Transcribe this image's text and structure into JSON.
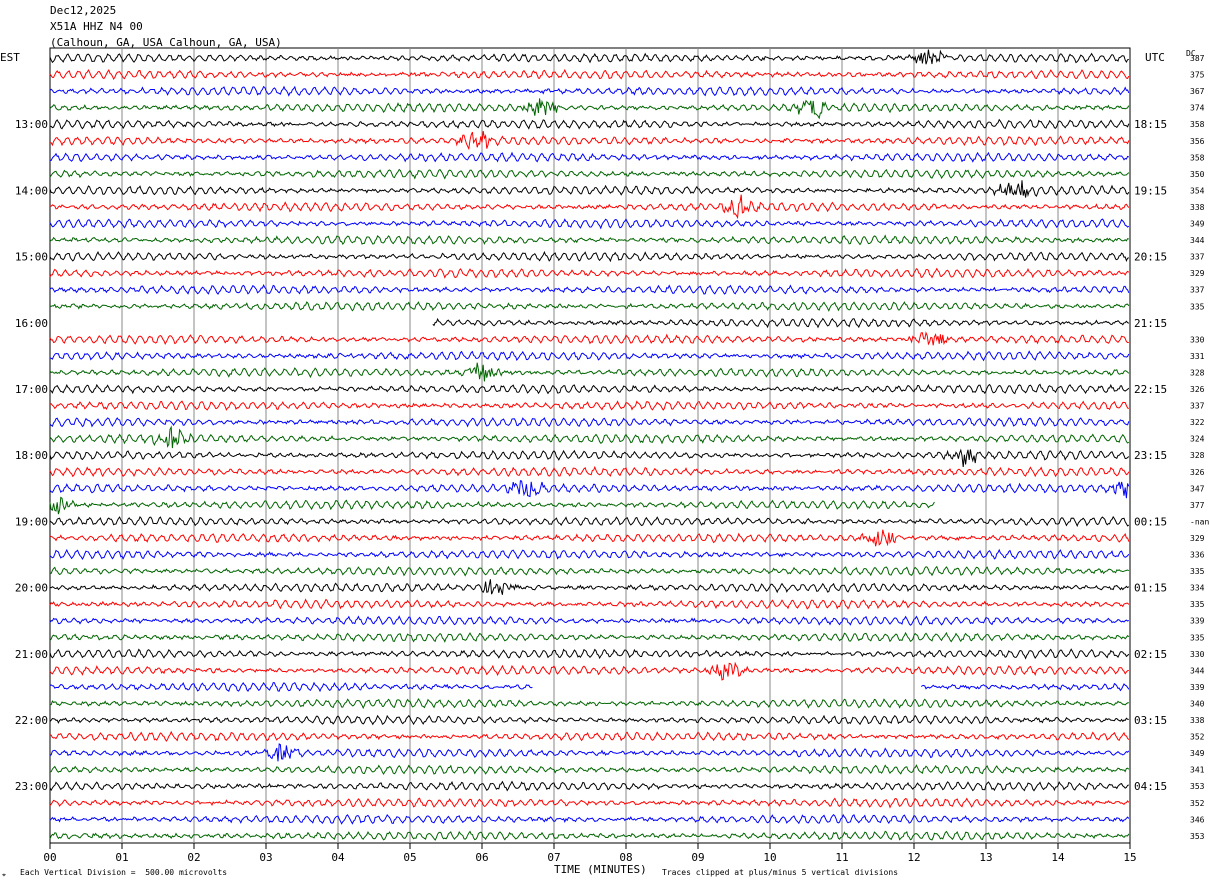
{
  "header": {
    "date": "Dec12,2025",
    "station": "X51A HHZ N4 00",
    "location": "(Calhoun, GA, USA Calhoun, GA, USA)"
  },
  "labels": {
    "left_tz": "EST",
    "right_tz": "UTC",
    "dc": "DC",
    "xlabel": "TIME (MINUTES)",
    "scale_note": "Each Vertical Division =  500.00 microvolts",
    "clip_note": "Traces clipped at plus/minus 5 vertical divisions"
  },
  "chart_data": {
    "type": "line",
    "xlabel": "TIME (MINUTES)",
    "x_ticks": [
      "00",
      "01",
      "02",
      "03",
      "04",
      "05",
      "06",
      "07",
      "08",
      "09",
      "10",
      "11",
      "12",
      "13",
      "14",
      "15"
    ],
    "xlim": [
      0,
      15
    ],
    "grid": "vertical lines every minute",
    "trace_colors": [
      "#000000",
      "#ff0000",
      "#0000ff",
      "#006400"
    ],
    "left_hour_labels": [
      "13:00",
      "14:00",
      "15:00",
      "16:00",
      "17:00",
      "18:00",
      "19:00",
      "20:00",
      "21:00",
      "22:00",
      "23:00"
    ],
    "right_hour_labels": [
      "18:15",
      "19:15",
      "20:15",
      "21:15",
      "22:15",
      "23:15",
      "00:15",
      "01:15",
      "02:15",
      "03:15",
      "04:15"
    ],
    "dc_offsets": [
      "387",
      "375",
      "367",
      "374",
      "358",
      "356",
      "358",
      "350",
      "354",
      "338",
      "349",
      "344",
      "337",
      "329",
      "337",
      "335",
      "",
      "330",
      "331",
      "328",
      "326",
      "337",
      "322",
      "324",
      "328",
      "326",
      "347",
      "377",
      "-nan",
      "329",
      "336",
      "335",
      "334",
      "335",
      "339",
      "335",
      "330",
      "344",
      "339",
      "340",
      "338",
      "352",
      "349",
      "341",
      "353",
      "352",
      "346",
      "353"
    ],
    "events": [
      {
        "row": 0,
        "minute": 12.2
      },
      {
        "row": 3,
        "minute": 6.8
      },
      {
        "row": 3,
        "minute": 10.6
      },
      {
        "row": 5,
        "minute": 5.9
      },
      {
        "row": 8,
        "minute": 13.4
      },
      {
        "row": 9,
        "minute": 9.6
      },
      {
        "row": 17,
        "minute": 12.2
      },
      {
        "row": 19,
        "minute": 6.0
      },
      {
        "row": 23,
        "minute": 1.7
      },
      {
        "row": 24,
        "minute": 12.7
      },
      {
        "row": 26,
        "minute": 6.6
      },
      {
        "row": 26,
        "minute": 15.0
      },
      {
        "row": 27,
        "minute": 0.1
      },
      {
        "row": 29,
        "minute": 11.5
      },
      {
        "row": 32,
        "minute": 6.2
      },
      {
        "row": 37,
        "minute": 9.4
      },
      {
        "row": 42,
        "minute": 3.2
      }
    ],
    "gaps": [
      {
        "row": 16,
        "from": 0,
        "to": 5.3
      },
      {
        "row": 38,
        "from": 6.7,
        "to": 12.1
      },
      {
        "row": 27,
        "from": 12.3,
        "to": 15
      }
    ]
  }
}
